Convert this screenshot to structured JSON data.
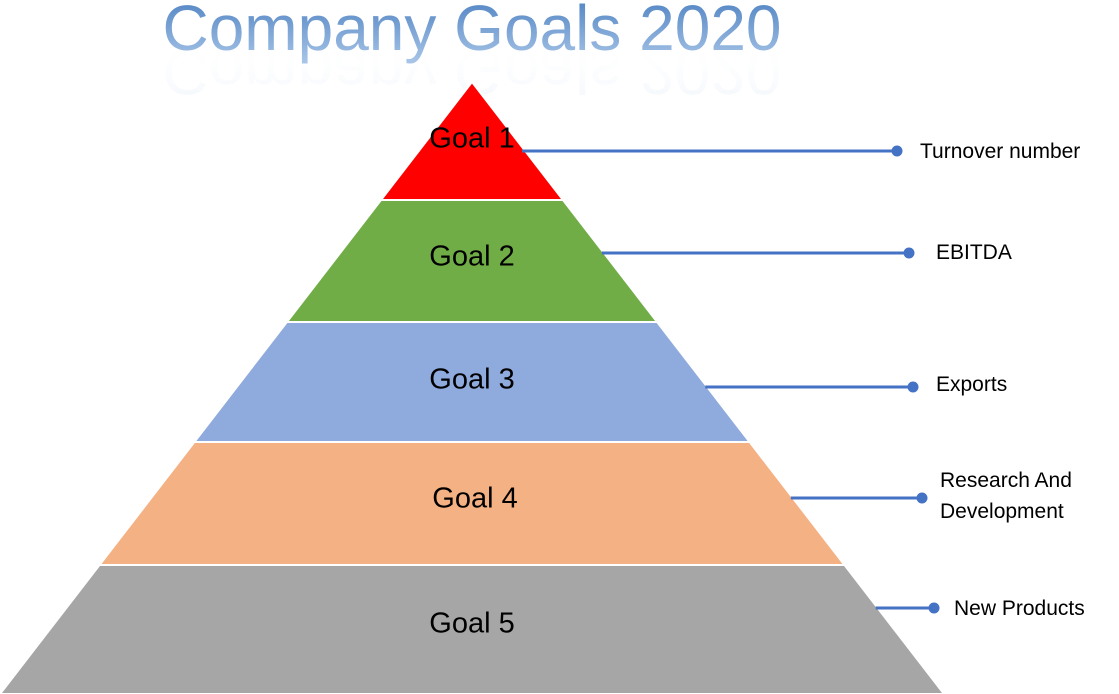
{
  "title": "Company Goals 2020",
  "colors": {
    "title_top": "#4a7fc0",
    "title_bottom": "#a9c6e8",
    "connector": "#4472c4",
    "level_text": "#000000",
    "annotation_text": "#000000"
  },
  "pyramid": [
    {
      "label": "Goal 1",
      "annotation": [
        "Turnover number"
      ],
      "color": "#ff0000"
    },
    {
      "label": "Goal 2",
      "annotation": [
        "EBITDA"
      ],
      "color": "#70ad47"
    },
    {
      "label": "Goal 3",
      "annotation": [
        "Exports"
      ],
      "color": "#8faadc"
    },
    {
      "label": "Goal 4",
      "annotation": [
        "Research And",
        "Development"
      ],
      "color": "#f4b183"
    },
    {
      "label": "Goal 5",
      "annotation": [
        "New Products"
      ],
      "color": "#a6a6a6"
    }
  ]
}
